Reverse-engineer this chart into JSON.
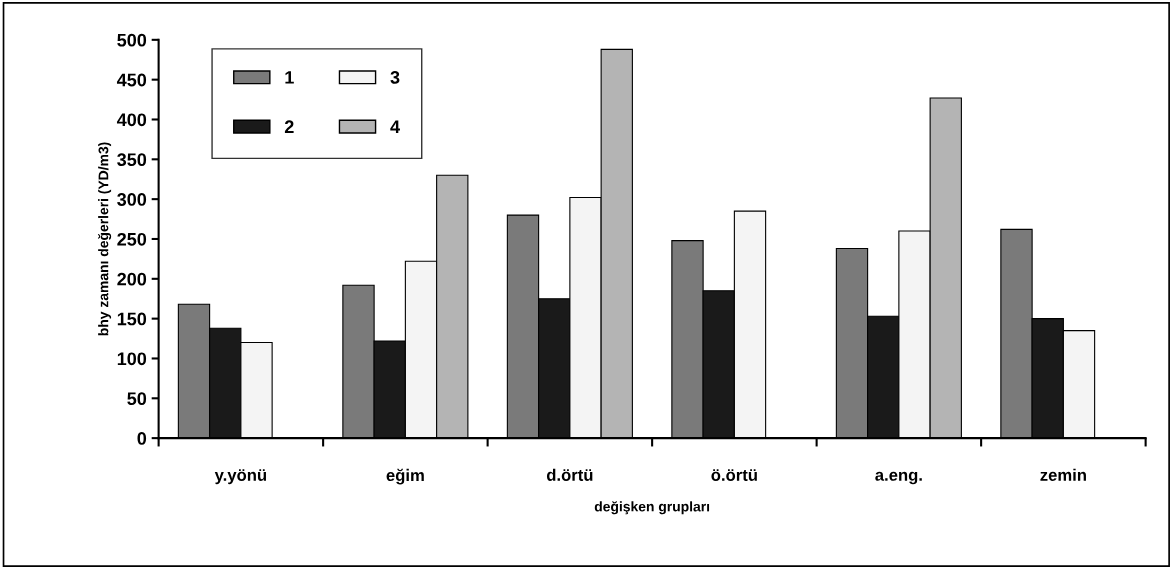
{
  "chart_data": {
    "type": "bar",
    "xlabel": "değişken grupları",
    "ylabel": "bhy zamanı değerleri (YD/m3)",
    "categories": [
      "y.yönü",
      "eğim",
      "d.örtü",
      "ö.örtü",
      "a.eng.",
      "zemin"
    ],
    "series": [
      {
        "name": "1",
        "color": "#7a7a7a",
        "values": [
          168,
          192,
          280,
          248,
          238,
          262
        ]
      },
      {
        "name": "2",
        "color": "#1a1a1a",
        "values": [
          138,
          122,
          175,
          185,
          153,
          150
        ]
      },
      {
        "name": "3",
        "color": "#f4f4f4",
        "values": [
          120,
          222,
          302,
          285,
          260,
          135
        ]
      },
      {
        "name": "4",
        "color": "#b4b4b4",
        "values": [
          null,
          330,
          488,
          null,
          427,
          null
        ]
      }
    ],
    "ylim": [
      0,
      500
    ],
    "yticks": [
      0,
      50,
      100,
      150,
      200,
      250,
      300,
      350,
      400,
      450,
      500
    ],
    "grid": false,
    "legend": "top left"
  }
}
